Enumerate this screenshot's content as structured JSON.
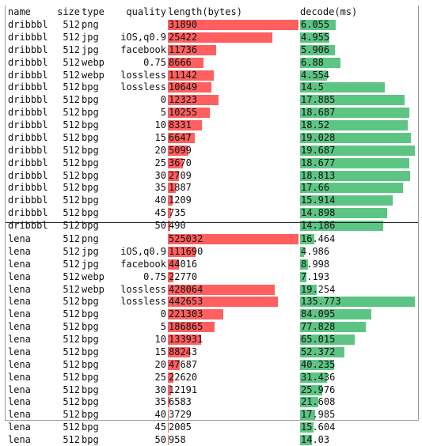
{
  "columns": {
    "name": "name",
    "size": "size",
    "type": "type",
    "quality": "quality",
    "length": "length(bytes)",
    "decode": "decode(ms)"
  },
  "colors": {
    "length_bar": "#ff5f5f",
    "decode_bar": "#5dc583",
    "divider": "#222222"
  },
  "scales": {
    "dribbbl": {
      "length_max": 31890,
      "decode_max": 19.687
    },
    "lena": {
      "length_max": 525032,
      "decode_max": 135.773
    }
  },
  "groups": [
    {
      "name": "dribbbl",
      "rows": [
        {
          "name": "dribbbl",
          "size": "512",
          "type": "png",
          "quality": "",
          "length": "31890",
          "decode": "6.055"
        },
        {
          "name": "dribbbl",
          "size": "512",
          "type": "jpg",
          "quality": "iOS,q0.9",
          "length": "25422",
          "decode": "4.955"
        },
        {
          "name": "dribbbl",
          "size": "512",
          "type": "jpg",
          "quality": "facebook",
          "length": "11736",
          "decode": "5.906"
        },
        {
          "name": "dribbbl",
          "size": "512",
          "type": "webp",
          "quality": "0.75",
          "length": "8666",
          "decode": "6.88"
        },
        {
          "name": "dribbbl",
          "size": "512",
          "type": "webp",
          "quality": "lossless",
          "length": "11142",
          "decode": "4.554"
        },
        {
          "name": "dribbbl",
          "size": "512",
          "type": "bpg",
          "quality": "lossless",
          "length": "10649",
          "decode": "14.5"
        },
        {
          "name": "dribbbl",
          "size": "512",
          "type": "bpg",
          "quality": "0",
          "length": "12323",
          "decode": "17.885"
        },
        {
          "name": "dribbbl",
          "size": "512",
          "type": "bpg",
          "quality": "5",
          "length": "10255",
          "decode": "18.687"
        },
        {
          "name": "dribbbl",
          "size": "512",
          "type": "bpg",
          "quality": "10",
          "length": "8331",
          "decode": "18.52"
        },
        {
          "name": "dribbbl",
          "size": "512",
          "type": "bpg",
          "quality": "15",
          "length": "6647",
          "decode": "19.028"
        },
        {
          "name": "dribbbl",
          "size": "512",
          "type": "bpg",
          "quality": "20",
          "length": "5099",
          "decode": "19.687"
        },
        {
          "name": "dribbbl",
          "size": "512",
          "type": "bpg",
          "quality": "25",
          "length": "3670",
          "decode": "18.677"
        },
        {
          "name": "dribbbl",
          "size": "512",
          "type": "bpg",
          "quality": "30",
          "length": "2709",
          "decode": "18.813"
        },
        {
          "name": "dribbbl",
          "size": "512",
          "type": "bpg",
          "quality": "35",
          "length": "1887",
          "decode": "17.66"
        },
        {
          "name": "dribbbl",
          "size": "512",
          "type": "bpg",
          "quality": "40",
          "length": "1209",
          "decode": "15.914"
        },
        {
          "name": "dribbbl",
          "size": "512",
          "type": "bpg",
          "quality": "45",
          "length": "735",
          "decode": "14.898"
        },
        {
          "name": "dribbbl",
          "size": "512",
          "type": "bpg",
          "quality": "50",
          "length": "490",
          "decode": "14.186"
        }
      ]
    },
    {
      "name": "lena",
      "rows": [
        {
          "name": "lena",
          "size": "512",
          "type": "png",
          "quality": "",
          "length": "525032",
          "decode": "16.464"
        },
        {
          "name": "lena",
          "size": "512",
          "type": "jpg",
          "quality": "iOS,q0.9",
          "length": "111690",
          "decode": "4.986"
        },
        {
          "name": "lena",
          "size": "512",
          "type": "jpg",
          "quality": "facebook",
          "length": "44016",
          "decode": "8.998"
        },
        {
          "name": "lena",
          "size": "512",
          "type": "webp",
          "quality": "0.75",
          "length": "22770",
          "decode": "7.193"
        },
        {
          "name": "lena",
          "size": "512",
          "type": "webp",
          "quality": "lossless",
          "length": "428064",
          "decode": "19.254"
        },
        {
          "name": "lena",
          "size": "512",
          "type": "bpg",
          "quality": "lossless",
          "length": "442653",
          "decode": "135.773"
        },
        {
          "name": "lena",
          "size": "512",
          "type": "bpg",
          "quality": "0",
          "length": "221303",
          "decode": "84.095"
        },
        {
          "name": "lena",
          "size": "512",
          "type": "bpg",
          "quality": "5",
          "length": "186865",
          "decode": "77.828"
        },
        {
          "name": "lena",
          "size": "512",
          "type": "bpg",
          "quality": "10",
          "length": "133931",
          "decode": "65.015"
        },
        {
          "name": "lena",
          "size": "512",
          "type": "bpg",
          "quality": "15",
          "length": "88243",
          "decode": "52.372"
        },
        {
          "name": "lena",
          "size": "512",
          "type": "bpg",
          "quality": "20",
          "length": "47687",
          "decode": "40.235"
        },
        {
          "name": "lena",
          "size": "512",
          "type": "bpg",
          "quality": "25",
          "length": "22620",
          "decode": "31.436"
        },
        {
          "name": "lena",
          "size": "512",
          "type": "bpg",
          "quality": "30",
          "length": "12191",
          "decode": "25.976"
        },
        {
          "name": "lena",
          "size": "512",
          "type": "bpg",
          "quality": "35",
          "length": "6583",
          "decode": "21.608"
        },
        {
          "name": "lena",
          "size": "512",
          "type": "bpg",
          "quality": "40",
          "length": "3729",
          "decode": "17.985"
        },
        {
          "name": "lena",
          "size": "512",
          "type": "bpg",
          "quality": "45",
          "length": "2005",
          "decode": "15.604"
        },
        {
          "name": "lena",
          "size": "512",
          "type": "bpg",
          "quality": "50",
          "length": "958",
          "decode": "14.03"
        }
      ]
    }
  ]
}
